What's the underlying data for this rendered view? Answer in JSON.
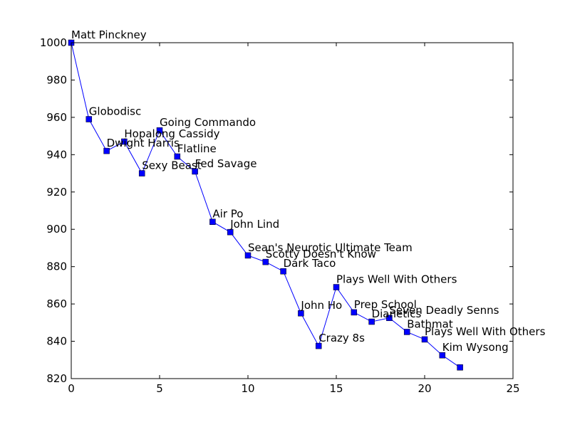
{
  "chart_data": {
    "type": "line",
    "title": "",
    "xlabel": "",
    "ylabel": "",
    "xlim": [
      0,
      25
    ],
    "ylim": [
      820,
      1000
    ],
    "xticks": [
      0,
      5,
      10,
      15,
      20,
      25
    ],
    "yticks": [
      820,
      840,
      860,
      880,
      900,
      920,
      940,
      960,
      980,
      1000
    ],
    "grid": false,
    "line_color": "#0000ff",
    "marker": "square",
    "points": [
      {
        "x": 0,
        "y": 1000,
        "label": "Matt Pinckney"
      },
      {
        "x": 1,
        "y": 959,
        "label": "Globodisc"
      },
      {
        "x": 2,
        "y": 942,
        "label": "Dwight Harris"
      },
      {
        "x": 3,
        "y": 947,
        "label": "Hopalong Cassidy"
      },
      {
        "x": 4,
        "y": 930,
        "label": "Sexy Beast"
      },
      {
        "x": 5,
        "y": 953,
        "label": "Going Commando"
      },
      {
        "x": 6,
        "y": 939,
        "label": "Flatline"
      },
      {
        "x": 7,
        "y": 931,
        "label": "Fed Savage"
      },
      {
        "x": 8,
        "y": 904,
        "label": "Air Po"
      },
      {
        "x": 9,
        "y": 898.5,
        "label": "John Lind"
      },
      {
        "x": 10,
        "y": 886,
        "label": "Sean's Neurotic Ultimate Team"
      },
      {
        "x": 11,
        "y": 882.5,
        "label": "Scotty Doesn't Know"
      },
      {
        "x": 12,
        "y": 877.5,
        "label": "Dark Taco"
      },
      {
        "x": 13,
        "y": 855,
        "label": "John Ho"
      },
      {
        "x": 14,
        "y": 837.5,
        "label": "Crazy 8s"
      },
      {
        "x": 15,
        "y": 869,
        "label": "Plays Well With Others"
      },
      {
        "x": 16,
        "y": 855.5,
        "label": "Prep School"
      },
      {
        "x": 17,
        "y": 850.5,
        "label": "Dianetics"
      },
      {
        "x": 18,
        "y": 852.5,
        "label": "Seven Deadly Senns"
      },
      {
        "x": 19,
        "y": 845,
        "label": "Bathmat"
      },
      {
        "x": 20,
        "y": 841,
        "label": "Plays Well With Others"
      },
      {
        "x": 21,
        "y": 832.5,
        "label": "Kim Wysong"
      },
      {
        "x": 22,
        "y": 826,
        "label": ""
      }
    ]
  }
}
